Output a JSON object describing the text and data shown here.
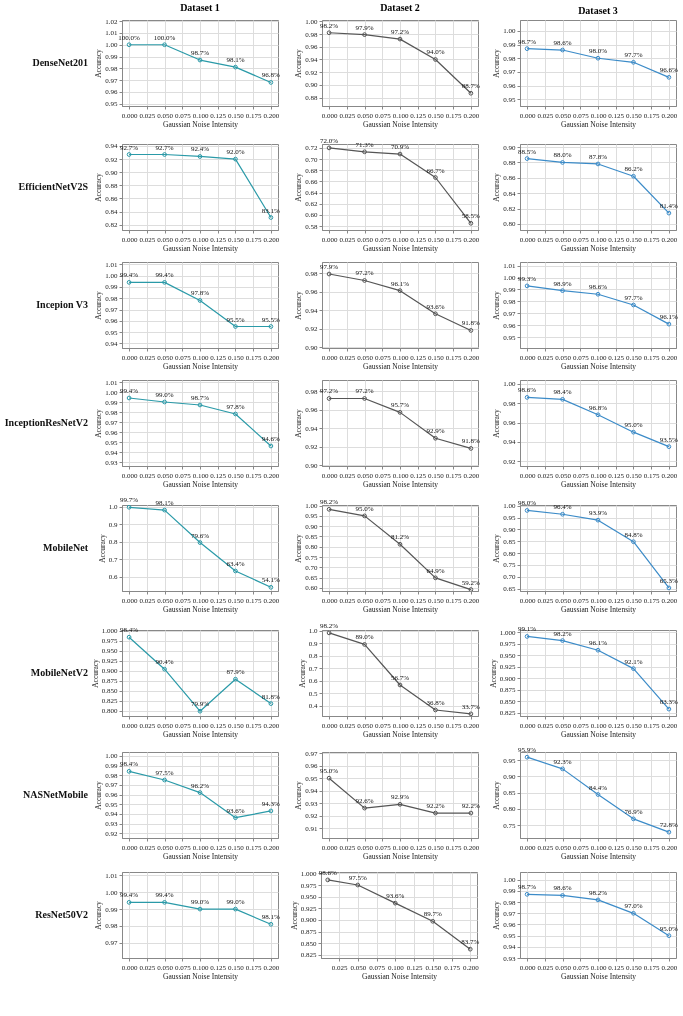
{
  "chart_data": [
    {
      "type": "line",
      "title": "Dataset 1",
      "annotations": [
        "DenseNet201"
      ],
      "xlabel": "Gaussian Noise Intensity",
      "ylabel": "Accuracy",
      "x": [
        0,
        0.05,
        0.1,
        0.15,
        0.2
      ],
      "values": [
        1.0,
        1.0,
        0.987,
        0.981,
        0.968
      ],
      "value_labels": [
        "100.0%",
        "100.0%",
        "98.7%",
        "98.1%",
        "96.8%"
      ],
      "color": "#2a9aa8",
      "xlim": [
        -0.01,
        0.21
      ],
      "xticks": [
        {
          "value": 0,
          "label": "0.000"
        },
        0.025,
        {
          "value": 0.05,
          "label": "0.050"
        },
        0.075,
        {
          "value": 0.1,
          "label": "0.100"
        },
        0.125,
        {
          "value": 0.15,
          "label": "0.150"
        },
        0.175,
        {
          "value": 0.2,
          "label": "0.200"
        }
      ],
      "ylim": [
        0.948,
        1.021
      ],
      "yticks": [
        0.95,
        0.96,
        0.97,
        0.98,
        0.99,
        {
          "value": 1,
          "label": "1.00"
        },
        1.01,
        1.02
      ],
      "grid": true,
      "marker": "circle"
    },
    {
      "type": "line",
      "title": "Dataset 2",
      "xlabel": "Gaussian Noise Intensity",
      "ylabel": "Accuracy",
      "x": [
        0,
        0.05,
        0.1,
        0.15,
        0.2
      ],
      "values": [
        0.982,
        0.979,
        0.972,
        0.94,
        0.887
      ],
      "value_labels": [
        "98.2%",
        "97.9%",
        "97.2%",
        "94.0%",
        "88.7%"
      ],
      "color": "#555555",
      "xlim": [
        -0.01,
        0.21
      ],
      "xticks": [
        {
          "value": 0,
          "label": "0.000"
        },
        0.025,
        {
          "value": 0.05,
          "label": "0.050"
        },
        0.075,
        {
          "value": 0.1,
          "label": "0.100"
        },
        0.125,
        {
          "value": 0.15,
          "label": "0.150"
        },
        0.175,
        {
          "value": 0.2,
          "label": "0.200"
        }
      ],
      "ylim": [
        0.867,
        1.002
      ],
      "yticks": [
        0.88,
        {
          "value": 0.9,
          "label": "0.90"
        },
        0.92,
        0.94,
        0.96,
        0.98,
        {
          "value": 1,
          "label": "1.00"
        }
      ],
      "grid": true,
      "marker": "circle"
    },
    {
      "type": "line",
      "title": "Dataset 3",
      "xlabel": "Gaussian Noise Intensity",
      "ylabel": "Accuracy",
      "x": [
        0,
        0.05,
        0.1,
        0.15,
        0.2
      ],
      "values": [
        0.987,
        0.986,
        0.98,
        0.977,
        0.966
      ],
      "value_labels": [
        "98.7%",
        "98.6%",
        "98.0%",
        "97.7%",
        "96.6%"
      ],
      "color": "#3b8bc8",
      "xlim": [
        -0.01,
        0.21
      ],
      "xticks": [
        {
          "value": 0,
          "label": "0.000"
        },
        0.025,
        {
          "value": 0.05,
          "label": "0.050"
        },
        0.075,
        {
          "value": 0.1,
          "label": "0.100"
        },
        0.125,
        {
          "value": 0.15,
          "label": "0.150"
        },
        0.175,
        {
          "value": 0.2,
          "label": "0.200"
        }
      ],
      "ylim": [
        0.945,
        1.008
      ],
      "yticks": [
        0.95,
        0.96,
        0.97,
        0.98,
        0.99,
        {
          "value": 1,
          "label": "1.00"
        }
      ],
      "grid": true,
      "marker": "circle"
    },
    {
      "type": "line",
      "annotations": [
        "EfficientNetV2S"
      ],
      "xlabel": "Gaussian Noise Intensity",
      "ylabel": "Accuracy",
      "x": [
        0,
        0.05,
        0.1,
        0.15,
        0.2
      ],
      "values": [
        0.927,
        0.927,
        0.924,
        0.92,
        0.831
      ],
      "value_labels": [
        "92.7%",
        "92.7%",
        "92.4%",
        "92.0%",
        "83.1%"
      ],
      "color": "#2a9aa8",
      "xlim": [
        -0.01,
        0.21
      ],
      "xticks": [
        {
          "value": 0,
          "label": "0.000"
        },
        0.025,
        {
          "value": 0.05,
          "label": "0.050"
        },
        0.075,
        {
          "value": 0.1,
          "label": "0.100"
        },
        0.125,
        {
          "value": 0.15,
          "label": "0.150"
        },
        0.175,
        {
          "value": 0.2,
          "label": "0.200"
        }
      ],
      "ylim": [
        0.812,
        0.943
      ],
      "yticks": [
        0.82,
        0.84,
        0.86,
        0.88,
        {
          "value": 0.9,
          "label": "0.90"
        },
        0.92,
        0.94
      ],
      "grid": true,
      "marker": "circle"
    },
    {
      "type": "line",
      "xlabel": "Gaussian Noise Intensity",
      "ylabel": "Accuracy",
      "x": [
        0,
        0.05,
        0.1,
        0.15,
        0.2
      ],
      "values": [
        0.72,
        0.713,
        0.709,
        0.667,
        0.585
      ],
      "value_labels": [
        "72.0%",
        "71.3%",
        "70.9%",
        "66.7%",
        "58.5%"
      ],
      "color": "#555555",
      "xlim": [
        -0.01,
        0.21
      ],
      "xticks": [
        {
          "value": 0,
          "label": "0.000"
        },
        0.025,
        {
          "value": 0.05,
          "label": "0.050"
        },
        0.075,
        {
          "value": 0.1,
          "label": "0.100"
        },
        0.125,
        {
          "value": 0.15,
          "label": "0.150"
        },
        0.175,
        {
          "value": 0.2,
          "label": "0.200"
        }
      ],
      "ylim": [
        0.573,
        0.727
      ],
      "yticks": [
        0.58,
        {
          "value": 0.6,
          "label": "0.60"
        },
        0.62,
        0.64,
        0.66,
        0.68,
        {
          "value": 0.7,
          "label": "0.70"
        },
        0.72
      ],
      "grid": true,
      "marker": "circle"
    },
    {
      "type": "line",
      "xlabel": "Gaussian Noise Intensity",
      "ylabel": "Accuracy",
      "x": [
        0,
        0.05,
        0.1,
        0.15,
        0.2
      ],
      "values": [
        0.885,
        0.88,
        0.878,
        0.862,
        0.814
      ],
      "value_labels": [
        "88.5%",
        "88.0%",
        "87.8%",
        "86.2%",
        "81.4%"
      ],
      "color": "#3b8bc8",
      "xlim": [
        -0.01,
        0.21
      ],
      "xticks": [
        {
          "value": 0,
          "label": "0.000"
        },
        0.025,
        {
          "value": 0.05,
          "label": "0.050"
        },
        0.075,
        {
          "value": 0.1,
          "label": "0.100"
        },
        0.125,
        {
          "value": 0.15,
          "label": "0.150"
        },
        0.175,
        {
          "value": 0.2,
          "label": "0.200"
        }
      ],
      "ylim": [
        0.792,
        0.904
      ],
      "yticks": [
        {
          "value": 0.8,
          "label": "0.80"
        },
        0.82,
        0.84,
        0.86,
        0.88,
        {
          "value": 0.9,
          "label": "0.90"
        }
      ],
      "grid": true,
      "marker": "circle"
    },
    {
      "type": "line",
      "annotations": [
        "Incepion V3"
      ],
      "xlabel": "Gaussian Noise Intensity",
      "ylabel": "Accuracy",
      "x": [
        0,
        0.05,
        0.1,
        0.15,
        0.2
      ],
      "values": [
        0.994,
        0.994,
        0.978,
        0.955,
        0.955
      ],
      "value_labels": [
        "99.4%",
        "99.4%",
        "97.8%",
        "95.5%",
        "95.5%"
      ],
      "color": "#2a9aa8",
      "xlim": [
        -0.01,
        0.21
      ],
      "xticks": [
        {
          "value": 0,
          "label": "0.000"
        },
        0.025,
        {
          "value": 0.05,
          "label": "0.050"
        },
        0.075,
        {
          "value": 0.1,
          "label": "0.100"
        },
        0.125,
        {
          "value": 0.15,
          "label": "0.150"
        },
        0.175,
        {
          "value": 0.2,
          "label": "0.200"
        }
      ],
      "ylim": [
        0.936,
        1.012
      ],
      "yticks": [
        0.94,
        0.95,
        0.96,
        0.97,
        0.98,
        0.99,
        {
          "value": 1,
          "label": "1.00"
        },
        1.01
      ],
      "grid": true,
      "marker": "circle"
    },
    {
      "type": "line",
      "xlabel": "Gaussian Noise Intensity",
      "ylabel": "Accuracy",
      "x": [
        0,
        0.05,
        0.1,
        0.15,
        0.2
      ],
      "values": [
        0.979,
        0.972,
        0.961,
        0.936,
        0.918
      ],
      "value_labels": [
        "97.9%",
        "97.2%",
        "96.1%",
        "93.6%",
        "91.8%"
      ],
      "color": "#555555",
      "xlim": [
        -0.01,
        0.21
      ],
      "xticks": [
        {
          "value": 0,
          "label": "0.000"
        },
        0.025,
        {
          "value": 0.05,
          "label": "0.050"
        },
        0.075,
        {
          "value": 0.1,
          "label": "0.100"
        },
        0.125,
        {
          "value": 0.15,
          "label": "0.150"
        },
        0.175,
        {
          "value": 0.2,
          "label": "0.200"
        }
      ],
      "ylim": [
        0.899,
        0.992
      ],
      "yticks": [
        {
          "value": 0.9,
          "label": "0.90"
        },
        0.92,
        0.94,
        0.96,
        0.98
      ],
      "grid": true,
      "marker": "circle"
    },
    {
      "type": "line",
      "xlabel": "Gaussian Noise Intensity",
      "ylabel": "Accuracy",
      "x": [
        0,
        0.05,
        0.1,
        0.15,
        0.2
      ],
      "values": [
        0.993,
        0.989,
        0.986,
        0.977,
        0.961
      ],
      "value_labels": [
        "99.3%",
        "98.9%",
        "98.6%",
        "97.7%",
        "96.1%"
      ],
      "color": "#3b8bc8",
      "xlim": [
        -0.01,
        0.21
      ],
      "xticks": [
        {
          "value": 0,
          "label": "0.000"
        },
        0.025,
        {
          "value": 0.05,
          "label": "0.050"
        },
        0.075,
        {
          "value": 0.1,
          "label": "0.100"
        },
        0.125,
        {
          "value": 0.15,
          "label": "0.150"
        },
        0.175,
        {
          "value": 0.2,
          "label": "0.200"
        }
      ],
      "ylim": [
        0.941,
        1.013
      ],
      "yticks": [
        0.95,
        0.96,
        0.97,
        0.98,
        0.99,
        {
          "value": 1,
          "label": "1.00"
        },
        1.01
      ],
      "grid": true,
      "marker": "circle"
    },
    {
      "type": "line",
      "annotations": [
        "InceptionResNetV2"
      ],
      "xlabel": "Gaussian Noise Intensity",
      "ylabel": "Accuracy",
      "x": [
        0,
        0.05,
        0.1,
        0.15,
        0.2
      ],
      "values": [
        0.994,
        0.99,
        0.987,
        0.978,
        0.946
      ],
      "value_labels": [
        "99.4%",
        "99.0%",
        "98.7%",
        "97.8%",
        "94.6%"
      ],
      "color": "#2a9aa8",
      "xlim": [
        -0.01,
        0.21
      ],
      "xticks": [
        {
          "value": 0,
          "label": "0.000"
        },
        0.025,
        {
          "value": 0.05,
          "label": "0.050"
        },
        0.075,
        {
          "value": 0.1,
          "label": "0.100"
        },
        0.125,
        {
          "value": 0.15,
          "label": "0.150"
        },
        0.175,
        {
          "value": 0.2,
          "label": "0.200"
        }
      ],
      "ylim": [
        0.926,
        1.012
      ],
      "yticks": [
        0.93,
        0.94,
        0.95,
        0.96,
        0.97,
        0.98,
        0.99,
        {
          "value": 1,
          "label": "1.00"
        },
        1.01
      ],
      "grid": true,
      "marker": "circle"
    },
    {
      "type": "line",
      "xlabel": "Gaussian Noise Intensity",
      "ylabel": "Accuracy",
      "x": [
        0,
        0.05,
        0.1,
        0.15,
        0.2
      ],
      "values": [
        0.972,
        0.972,
        0.957,
        0.929,
        0.918
      ],
      "value_labels": [
        "97.2%",
        "97.2%",
        "95.7%",
        "92.9%",
        "91.8%"
      ],
      "color": "#555555",
      "xlim": [
        -0.01,
        0.21
      ],
      "xticks": [
        {
          "value": 0,
          "label": "0.000"
        },
        0.025,
        {
          "value": 0.05,
          "label": "0.050"
        },
        0.075,
        {
          "value": 0.1,
          "label": "0.100"
        },
        0.125,
        {
          "value": 0.15,
          "label": "0.150"
        },
        0.175,
        {
          "value": 0.2,
          "label": "0.200"
        }
      ],
      "ylim": [
        0.899,
        0.992
      ],
      "yticks": [
        {
          "value": 0.9,
          "label": "0.90"
        },
        0.92,
        0.94,
        0.96,
        0.98
      ],
      "grid": true,
      "marker": "circle"
    },
    {
      "type": "line",
      "xlabel": "Gaussian Noise Intensity",
      "ylabel": "Accuracy",
      "x": [
        0,
        0.05,
        0.1,
        0.15,
        0.2
      ],
      "values": [
        0.986,
        0.984,
        0.968,
        0.95,
        0.935
      ],
      "value_labels": [
        "98.6%",
        "98.4%",
        "96.8%",
        "95.0%",
        "93.5%"
      ],
      "color": "#3b8bc8",
      "xlim": [
        -0.01,
        0.21
      ],
      "xticks": [
        {
          "value": 0,
          "label": "0.000"
        },
        0.025,
        {
          "value": 0.05,
          "label": "0.050"
        },
        0.075,
        {
          "value": 0.1,
          "label": "0.100"
        },
        0.125,
        {
          "value": 0.15,
          "label": "0.150"
        },
        0.175,
        {
          "value": 0.2,
          "label": "0.200"
        }
      ],
      "ylim": [
        0.915,
        1.004
      ],
      "yticks": [
        0.92,
        0.94,
        0.96,
        0.98,
        {
          "value": 1,
          "label": "1.00"
        }
      ],
      "grid": true,
      "marker": "circle"
    },
    {
      "type": "line",
      "annotations": [
        "MobileNet"
      ],
      "xlabel": "Gaussian Noise Intensity",
      "ylabel": "Accuracy",
      "x": [
        0,
        0.05,
        0.1,
        0.15,
        0.2
      ],
      "values": [
        0.997,
        0.981,
        0.796,
        0.634,
        0.541
      ],
      "value_labels": [
        "99.7%",
        "98.1%",
        "79.6%",
        "63.4%",
        "54.1%"
      ],
      "color": "#2a9aa8",
      "xlim": [
        -0.01,
        0.21
      ],
      "xticks": [
        {
          "value": 0,
          "label": "0.000"
        },
        0.025,
        {
          "value": 0.05,
          "label": "0.050"
        },
        0.075,
        {
          "value": 0.1,
          "label": "0.100"
        },
        0.125,
        {
          "value": 0.15,
          "label": "0.150"
        },
        0.175,
        {
          "value": 0.2,
          "label": "0.200"
        }
      ],
      "ylim": [
        0.52,
        1.01
      ],
      "yticks": [
        0.6,
        0.7,
        0.8,
        0.9,
        {
          "value": 1,
          "label": "1.0"
        }
      ],
      "grid": true,
      "marker": "circle"
    },
    {
      "type": "line",
      "xlabel": "Gaussian Noise Intensity",
      "ylabel": "Accuracy",
      "x": [
        0,
        0.05,
        0.1,
        0.15,
        0.2
      ],
      "values": [
        0.982,
        0.95,
        0.812,
        0.649,
        0.592
      ],
      "value_labels": [
        "98.2%",
        "95.0%",
        "81.2%",
        "64.9%",
        "59.2%"
      ],
      "color": "#555555",
      "xlim": [
        -0.01,
        0.21
      ],
      "xticks": [
        {
          "value": 0,
          "label": "0.000"
        },
        0.025,
        {
          "value": 0.05,
          "label": "0.050"
        },
        0.075,
        {
          "value": 0.1,
          "label": "0.100"
        },
        0.125,
        {
          "value": 0.15,
          "label": "0.150"
        },
        0.175,
        {
          "value": 0.2,
          "label": "0.200"
        }
      ],
      "ylim": [
        0.585,
        1.003
      ],
      "yticks": [
        {
          "value": 0.6,
          "label": "0.60"
        },
        0.65,
        {
          "value": 0.7,
          "label": "0.70"
        },
        0.75,
        {
          "value": 0.8,
          "label": "0.80"
        },
        0.85,
        {
          "value": 0.9,
          "label": "0.90"
        },
        0.95,
        {
          "value": 1,
          "label": "1.00"
        }
      ],
      "grid": true,
      "marker": "circle"
    },
    {
      "type": "line",
      "xlabel": "Gaussian Noise Intensity",
      "ylabel": "Accuracy",
      "x": [
        0,
        0.05,
        0.1,
        0.15,
        0.2
      ],
      "values": [
        0.98,
        0.964,
        0.939,
        0.848,
        0.653
      ],
      "value_labels": [
        "98.0%",
        "96.4%",
        "93.9%",
        "84.8%",
        "65.3%"
      ],
      "color": "#3b8bc8",
      "xlim": [
        -0.01,
        0.21
      ],
      "xticks": [
        {
          "value": 0,
          "label": "0.000"
        },
        0.025,
        {
          "value": 0.05,
          "label": "0.050"
        },
        0.075,
        {
          "value": 0.1,
          "label": "0.100"
        },
        0.125,
        {
          "value": 0.15,
          "label": "0.150"
        },
        0.175,
        {
          "value": 0.2,
          "label": "0.200"
        }
      ],
      "ylim": [
        0.64,
        1.003
      ],
      "yticks": [
        0.65,
        {
          "value": 0.7,
          "label": "0.70"
        },
        0.75,
        {
          "value": 0.8,
          "label": "0.80"
        },
        0.85,
        {
          "value": 0.9,
          "label": "0.90"
        },
        0.95,
        {
          "value": 1,
          "label": "1.00"
        }
      ],
      "grid": true,
      "marker": "circle"
    },
    {
      "type": "line",
      "annotations": [
        "MobileNetV2"
      ],
      "xlabel": "Gaussian Noise Intensity",
      "ylabel": "Accuracy",
      "x": [
        0,
        0.05,
        0.1,
        0.15,
        0.2
      ],
      "values": [
        0.984,
        0.904,
        0.799,
        0.879,
        0.818
      ],
      "value_labels": [
        "98.4%",
        "90.4%",
        "79.9%",
        "87.9%",
        "81.8%"
      ],
      "color": "#2a9aa8",
      "xlim": [
        -0.01,
        0.21
      ],
      "xticks": [
        {
          "value": 0,
          "label": "0.000"
        },
        0.025,
        {
          "value": 0.05,
          "label": "0.050"
        },
        0.075,
        {
          "value": 0.1,
          "label": "0.100"
        },
        0.125,
        {
          "value": 0.15,
          "label": "0.150"
        },
        0.175,
        {
          "value": 0.2,
          "label": "0.200"
        }
      ],
      "ylim": [
        0.787,
        1.002
      ],
      "yticks": [
        {
          "value": 0.8,
          "label": "0.800"
        },
        0.825,
        {
          "value": 0.85,
          "label": "0.850"
        },
        0.875,
        {
          "value": 0.9,
          "label": "0.900"
        },
        0.925,
        {
          "value": 0.95,
          "label": "0.950"
        },
        0.975,
        {
          "value": 1,
          "label": "1.000"
        }
      ],
      "grid": true,
      "marker": "circle"
    },
    {
      "type": "line",
      "xlabel": "Gaussian Noise Intensity",
      "ylabel": "Accuracy",
      "x": [
        0,
        0.05,
        0.1,
        0.15,
        0.2
      ],
      "values": [
        0.982,
        0.89,
        0.567,
        0.368,
        0.337
      ],
      "value_labels": [
        "98.2%",
        "89.0%",
        "56.7%",
        "36.8%",
        "33.7%"
      ],
      "color": "#555555",
      "xlim": [
        -0.01,
        0.21
      ],
      "xticks": [
        {
          "value": 0,
          "label": "0.000"
        },
        0.025,
        {
          "value": 0.05,
          "label": "0.050"
        },
        0.075,
        {
          "value": 0.1,
          "label": "0.100"
        },
        0.125,
        {
          "value": 0.15,
          "label": "0.150"
        },
        0.175,
        {
          "value": 0.2,
          "label": "0.200"
        }
      ],
      "ylim": [
        0.32,
        1.005
      ],
      "yticks": [
        0.4,
        0.5,
        0.6,
        0.7,
        0.8,
        0.9,
        {
          "value": 1,
          "label": "1.0"
        }
      ],
      "grid": true,
      "marker": "circle"
    },
    {
      "type": "line",
      "xlabel": "Gaussian Noise Intensity",
      "ylabel": "Accuracy",
      "x": [
        0,
        0.05,
        0.1,
        0.15,
        0.2
      ],
      "values": [
        0.991,
        0.982,
        0.961,
        0.921,
        0.833
      ],
      "value_labels": [
        "99.1%",
        "98.2%",
        "96.1%",
        "92.1%",
        "83.3%"
      ],
      "color": "#3b8bc8",
      "xlim": [
        -0.01,
        0.21
      ],
      "xticks": [
        {
          "value": 0,
          "label": "0.000"
        },
        0.025,
        {
          "value": 0.05,
          "label": "0.050"
        },
        0.075,
        {
          "value": 0.1,
          "label": "0.100"
        },
        0.125,
        {
          "value": 0.15,
          "label": "0.150"
        },
        0.175,
        {
          "value": 0.2,
          "label": "0.200"
        }
      ],
      "ylim": [
        0.818,
        1.005
      ],
      "yticks": [
        0.825,
        {
          "value": 0.85,
          "label": "0.850"
        },
        0.875,
        {
          "value": 0.9,
          "label": "0.900"
        },
        0.925,
        {
          "value": 0.95,
          "label": "0.950"
        },
        0.975,
        {
          "value": 1,
          "label": "1.000"
        }
      ],
      "grid": true,
      "marker": "circle"
    },
    {
      "type": "line",
      "annotations": [
        "NASNetMobile"
      ],
      "xlabel": "Gaussian Noise Intensity",
      "ylabel": "Accuracy",
      "x": [
        0,
        0.05,
        0.1,
        0.15,
        0.2
      ],
      "values": [
        0.984,
        0.975,
        0.962,
        0.936,
        0.943
      ],
      "value_labels": [
        "98.4%",
        "97.5%",
        "96.2%",
        "93.6%",
        "94.3%"
      ],
      "color": "#2a9aa8",
      "xlim": [
        -0.01,
        0.21
      ],
      "xticks": [
        {
          "value": 0,
          "label": "0.000"
        },
        0.025,
        {
          "value": 0.05,
          "label": "0.050"
        },
        0.075,
        {
          "value": 0.1,
          "label": "0.100"
        },
        0.125,
        {
          "value": 0.15,
          "label": "0.150"
        },
        0.175,
        {
          "value": 0.2,
          "label": "0.200"
        }
      ],
      "ylim": [
        0.915,
        1.004
      ],
      "yticks": [
        0.92,
        0.93,
        0.94,
        0.95,
        0.96,
        0.97,
        0.98,
        0.99,
        {
          "value": 1,
          "label": "1.00"
        }
      ],
      "grid": true,
      "marker": "circle"
    },
    {
      "type": "line",
      "xlabel": "Gaussian Noise Intensity",
      "ylabel": "Accuracy",
      "x": [
        0,
        0.05,
        0.1,
        0.15,
        0.2
      ],
      "values": [
        0.95,
        0.926,
        0.929,
        0.922,
        0.922
      ],
      "value_labels": [
        "95.0%",
        "92.6%",
        "92.9%",
        "92.2%",
        "92.2%"
      ],
      "color": "#555555",
      "xlim": [
        -0.01,
        0.21
      ],
      "xticks": [
        {
          "value": 0,
          "label": "0.000"
        },
        0.025,
        {
          "value": 0.05,
          "label": "0.050"
        },
        0.075,
        {
          "value": 0.1,
          "label": "0.100"
        },
        0.125,
        {
          "value": 0.15,
          "label": "0.150"
        },
        0.175,
        {
          "value": 0.2,
          "label": "0.200"
        }
      ],
      "ylim": [
        0.902,
        0.971
      ],
      "yticks": [
        0.91,
        0.92,
        0.93,
        0.94,
        0.95,
        0.96,
        0.97
      ],
      "grid": true,
      "marker": "circle"
    },
    {
      "type": "line",
      "xlabel": "Gaussian Noise Intensity",
      "ylabel": "Accuracy",
      "x": [
        0,
        0.05,
        0.1,
        0.15,
        0.2
      ],
      "values": [
        0.959,
        0.923,
        0.844,
        0.769,
        0.728
      ],
      "value_labels": [
        "95.9%",
        "92.3%",
        "84.4%",
        "76.9%",
        "72.8%"
      ],
      "color": "#3b8bc8",
      "xlim": [
        -0.01,
        0.21
      ],
      "xticks": [
        {
          "value": 0,
          "label": "0.000"
        },
        0.025,
        {
          "value": 0.05,
          "label": "0.050"
        },
        0.075,
        {
          "value": 0.1,
          "label": "0.100"
        },
        0.125,
        {
          "value": 0.15,
          "label": "0.150"
        },
        0.175,
        {
          "value": 0.2,
          "label": "0.200"
        }
      ],
      "ylim": [
        0.71,
        0.975
      ],
      "yticks": [
        0.75,
        {
          "value": 0.8,
          "label": "0.80"
        },
        0.85,
        {
          "value": 0.9,
          "label": "0.90"
        },
        0.95
      ],
      "grid": true,
      "marker": "circle"
    },
    {
      "type": "line",
      "annotations": [
        "ResNet50V2"
      ],
      "xlabel": "Gaussian Noise Intensity",
      "ylabel": "Accuracy",
      "x": [
        0,
        0.05,
        0.1,
        0.15,
        0.2
      ],
      "values": [
        0.994,
        0.994,
        0.99,
        0.99,
        0.981
      ],
      "value_labels": [
        "99.4%",
        "99.4%",
        "99.0%",
        "99.0%",
        "98.1%"
      ],
      "color": "#2a9aa8",
      "xlim": [
        -0.01,
        0.21
      ],
      "xticks": [
        {
          "value": 0,
          "label": "0.000"
        },
        0.025,
        {
          "value": 0.05,
          "label": "0.050"
        },
        0.075,
        {
          "value": 0.1,
          "label": "0.100"
        },
        0.125,
        {
          "value": 0.15,
          "label": "0.150"
        },
        0.175,
        {
          "value": 0.2,
          "label": "0.200"
        }
      ],
      "ylim": [
        0.961,
        1.012
      ],
      "yticks": [
        0.97,
        0.98,
        0.99,
        {
          "value": 1,
          "label": "1.00"
        },
        1.01
      ],
      "grid": true,
      "marker": "circle"
    },
    {
      "type": "line",
      "xlabel": "Gaussian Noise Intensity",
      "ylabel": "Accuracy",
      "x": [
        0.01,
        0.05,
        0.1,
        0.15,
        0.2
      ],
      "values": [
        0.986,
        0.975,
        0.936,
        0.897,
        0.837
      ],
      "value_labels": [
        "98.6%",
        "97.5%",
        "93.6%",
        "89.7%",
        "83.7%"
      ],
      "color": "#555555",
      "xlim": [
        0.001,
        0.209
      ],
      "xticks": [
        0.025,
        {
          "value": 0.05,
          "label": "0.050"
        },
        0.075,
        {
          "value": 0.1,
          "label": "0.100"
        },
        0.125,
        {
          "value": 0.15,
          "label": "0.150"
        },
        0.175,
        {
          "value": 0.2,
          "label": "0.200"
        }
      ],
      "ylim": [
        0.818,
        1.003
      ],
      "yticks": [
        0.825,
        {
          "value": 0.85,
          "label": "0.850"
        },
        0.875,
        {
          "value": 0.9,
          "label": "0.900"
        },
        0.925,
        {
          "value": 0.95,
          "label": "0.950"
        },
        0.975,
        {
          "value": 1,
          "label": "1.000"
        }
      ],
      "grid": true,
      "marker": "circle"
    },
    {
      "type": "line",
      "xlabel": "Gaussian Noise Intensity",
      "ylabel": "Accuracy",
      "x": [
        0,
        0.05,
        0.1,
        0.15,
        0.2
      ],
      "values": [
        0.987,
        0.986,
        0.982,
        0.97,
        0.95
      ],
      "value_labels": [
        "98.7%",
        "98.6%",
        "98.2%",
        "97.0%",
        "95.0%"
      ],
      "color": "#3b8bc8",
      "xlim": [
        -0.01,
        0.21
      ],
      "xticks": [
        {
          "value": 0,
          "label": "0.000"
        },
        0.025,
        {
          "value": 0.05,
          "label": "0.050"
        },
        0.075,
        {
          "value": 0.1,
          "label": "0.100"
        },
        0.125,
        {
          "value": 0.15,
          "label": "0.150"
        },
        0.175,
        {
          "value": 0.2,
          "label": "0.200"
        }
      ],
      "ylim": [
        0.93,
        1.007
      ],
      "yticks": [
        0.93,
        0.94,
        0.95,
        0.96,
        0.97,
        0.98,
        0.99,
        {
          "value": 1,
          "label": "1.00"
        }
      ],
      "grid": true,
      "marker": "circle"
    }
  ]
}
